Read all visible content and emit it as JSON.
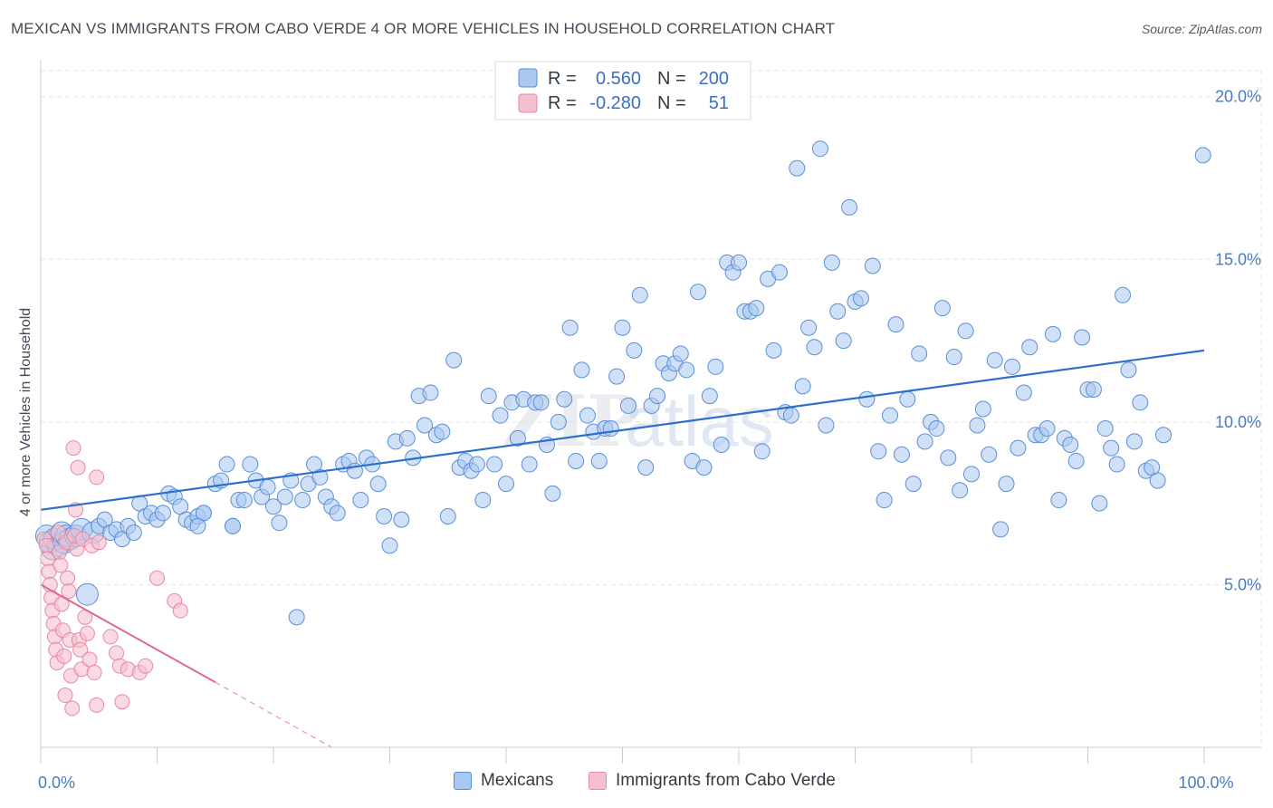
{
  "title": "MEXICAN VS IMMIGRANTS FROM CABO VERDE 4 OR MORE VEHICLES IN HOUSEHOLD CORRELATION CHART",
  "source": "Source: ZipAtlas.com",
  "watermark": {
    "zip": "ZIP",
    "atlas": "atlas"
  },
  "colors": {
    "blue_fill": "#a9c8f0",
    "blue_stroke": "#5b8fd8",
    "blue_line": "#2f6fcc",
    "pink_fill": "#f5bfcf",
    "pink_stroke": "#e68aa8",
    "pink_line": "#e06a93",
    "tick_text": "#4a7cc4",
    "grid": "#e3e6ea"
  },
  "legend": {
    "row1": {
      "r_label": "R =",
      "r_value": "0.560",
      "n_label": "N =",
      "n_value": "200"
    },
    "row2": {
      "r_label": "R =",
      "r_value": "-0.280",
      "n_label": "N =",
      "n_value": "51"
    }
  },
  "bottom_legend": {
    "mexicans": "Mexicans",
    "caboverde": "Immigrants from Cabo Verde"
  },
  "chart_data": {
    "type": "scatter",
    "title": "MEXICAN VS IMMIGRANTS FROM CABO VERDE 4 OR MORE VEHICLES IN HOUSEHOLD CORRELATION CHART",
    "xlabel": "",
    "ylabel": "4 or more Vehicles in Household",
    "xlim": [
      0,
      100
    ],
    "ylim": [
      0,
      20.8
    ],
    "x_tick_labels": [
      {
        "value": 0,
        "label": "0.0%"
      },
      {
        "value": 100,
        "label": "100.0%"
      }
    ],
    "y_tick_labels": [
      {
        "value": 5,
        "label": "5.0%"
      },
      {
        "value": 10,
        "label": "10.0%"
      },
      {
        "value": 15,
        "label": "15.0%"
      },
      {
        "value": 20,
        "label": "20.0%"
      }
    ],
    "grid": true,
    "legend_position": "top-center",
    "series": [
      {
        "name": "Mexicans",
        "r": 0.56,
        "n": 200,
        "trend": {
          "x": [
            0,
            100
          ],
          "y": [
            7.3,
            12.2
          ]
        },
        "points": [
          [
            0.5,
            6.5
          ],
          [
            0.8,
            6.3
          ],
          [
            1.0,
            6.1
          ],
          [
            1.2,
            6.4
          ],
          [
            1.5,
            6.2
          ],
          [
            1.8,
            6.6
          ],
          [
            2.0,
            6.3
          ],
          [
            2.2,
            6.5
          ],
          [
            2.5,
            6.4
          ],
          [
            3.0,
            6.5
          ],
          [
            3.5,
            6.7
          ],
          [
            4.0,
            4.7
          ],
          [
            4.5,
            6.6
          ],
          [
            5.0,
            6.8
          ],
          [
            5.5,
            7.0
          ],
          [
            6.0,
            6.6
          ],
          [
            6.5,
            6.7
          ],
          [
            7.0,
            6.4
          ],
          [
            7.5,
            6.8
          ],
          [
            8.0,
            6.6
          ],
          [
            8.5,
            7.5
          ],
          [
            9.0,
            7.1
          ],
          [
            9.5,
            7.2
          ],
          [
            10.0,
            7.0
          ],
          [
            10.5,
            7.2
          ],
          [
            11.0,
            7.8
          ],
          [
            11.5,
            7.7
          ],
          [
            12.0,
            7.4
          ],
          [
            12.5,
            7.0
          ],
          [
            13.0,
            6.9
          ],
          [
            13.5,
            7.1
          ],
          [
            14.0,
            7.2
          ],
          [
            15.0,
            8.1
          ],
          [
            15.5,
            8.2
          ],
          [
            16.0,
            8.7
          ],
          [
            16.5,
            6.8
          ],
          [
            17.0,
            7.6
          ],
          [
            17.5,
            7.6
          ],
          [
            18.0,
            8.7
          ],
          [
            18.5,
            8.2
          ],
          [
            19.0,
            7.7
          ],
          [
            19.5,
            8.0
          ],
          [
            20.0,
            7.4
          ],
          [
            20.5,
            6.9
          ],
          [
            21.0,
            7.7
          ],
          [
            21.5,
            8.2
          ],
          [
            22.0,
            4.0
          ],
          [
            22.5,
            7.6
          ],
          [
            23.0,
            8.1
          ],
          [
            23.5,
            8.7
          ],
          [
            24.0,
            8.3
          ],
          [
            24.5,
            7.7
          ],
          [
            25.0,
            7.4
          ],
          [
            25.5,
            7.2
          ],
          [
            26.0,
            8.7
          ],
          [
            26.5,
            8.8
          ],
          [
            27.0,
            8.5
          ],
          [
            27.5,
            7.6
          ],
          [
            28.0,
            8.9
          ],
          [
            28.5,
            8.7
          ],
          [
            29.0,
            8.1
          ],
          [
            29.5,
            7.1
          ],
          [
            30.0,
            6.2
          ],
          [
            30.5,
            9.4
          ],
          [
            31.0,
            7.0
          ],
          [
            31.5,
            9.5
          ],
          [
            32.0,
            8.9
          ],
          [
            32.5,
            10.8
          ],
          [
            33.0,
            9.9
          ],
          [
            33.5,
            10.9
          ],
          [
            34.0,
            9.6
          ],
          [
            34.5,
            9.7
          ],
          [
            35.0,
            7.1
          ],
          [
            35.5,
            11.9
          ],
          [
            36.0,
            8.6
          ],
          [
            36.5,
            8.8
          ],
          [
            37.0,
            8.5
          ],
          [
            37.5,
            8.7
          ],
          [
            38.0,
            7.6
          ],
          [
            38.5,
            10.8
          ],
          [
            39.0,
            8.7
          ],
          [
            39.5,
            10.2
          ],
          [
            40.0,
            8.1
          ],
          [
            40.5,
            10.6
          ],
          [
            41.0,
            9.5
          ],
          [
            41.5,
            10.7
          ],
          [
            42.0,
            8.7
          ],
          [
            42.5,
            10.6
          ],
          [
            43.0,
            10.6
          ],
          [
            43.5,
            9.3
          ],
          [
            44.0,
            7.8
          ],
          [
            44.5,
            10.0
          ],
          [
            45.0,
            10.7
          ],
          [
            45.5,
            12.9
          ],
          [
            46.0,
            8.8
          ],
          [
            46.5,
            11.6
          ],
          [
            47.0,
            10.2
          ],
          [
            47.5,
            9.7
          ],
          [
            48.0,
            8.8
          ],
          [
            48.5,
            9.8
          ],
          [
            49.0,
            9.8
          ],
          [
            49.5,
            11.4
          ],
          [
            50.0,
            12.9
          ],
          [
            50.5,
            10.5
          ],
          [
            51.0,
            12.2
          ],
          [
            51.5,
            13.9
          ],
          [
            52.0,
            8.6
          ],
          [
            52.5,
            10.5
          ],
          [
            53.0,
            10.8
          ],
          [
            53.5,
            11.8
          ],
          [
            54.0,
            11.5
          ],
          [
            54.5,
            11.8
          ],
          [
            55.0,
            12.1
          ],
          [
            55.5,
            11.6
          ],
          [
            56.0,
            8.8
          ],
          [
            56.5,
            14.0
          ],
          [
            57.0,
            8.6
          ],
          [
            57.5,
            10.8
          ],
          [
            58.0,
            11.7
          ],
          [
            58.5,
            9.3
          ],
          [
            59.0,
            14.9
          ],
          [
            59.5,
            14.6
          ],
          [
            60.0,
            14.9
          ],
          [
            60.5,
            13.4
          ],
          [
            61.0,
            13.4
          ],
          [
            61.5,
            13.5
          ],
          [
            62.0,
            9.1
          ],
          [
            62.5,
            14.4
          ],
          [
            63.0,
            12.2
          ],
          [
            63.5,
            14.6
          ],
          [
            64.0,
            10.3
          ],
          [
            64.5,
            10.2
          ],
          [
            65.0,
            17.8
          ],
          [
            65.5,
            11.1
          ],
          [
            66.0,
            12.9
          ],
          [
            66.5,
            12.3
          ],
          [
            67.0,
            18.4
          ],
          [
            67.5,
            9.9
          ],
          [
            68.0,
            14.9
          ],
          [
            68.5,
            13.4
          ],
          [
            69.0,
            12.5
          ],
          [
            69.5,
            16.6
          ],
          [
            70.0,
            13.7
          ],
          [
            70.5,
            13.8
          ],
          [
            71.0,
            10.7
          ],
          [
            71.5,
            14.8
          ],
          [
            72.0,
            9.1
          ],
          [
            72.5,
            7.6
          ],
          [
            73.0,
            10.2
          ],
          [
            73.5,
            13.0
          ],
          [
            74.0,
            9.0
          ],
          [
            74.5,
            10.7
          ],
          [
            75.0,
            8.1
          ],
          [
            75.5,
            12.1
          ],
          [
            76.0,
            9.4
          ],
          [
            76.5,
            10.0
          ],
          [
            77.0,
            9.8
          ],
          [
            77.5,
            13.5
          ],
          [
            78.0,
            8.9
          ],
          [
            78.5,
            12.0
          ],
          [
            79.0,
            7.9
          ],
          [
            79.5,
            12.8
          ],
          [
            80.0,
            8.4
          ],
          [
            80.5,
            9.9
          ],
          [
            81.0,
            10.4
          ],
          [
            81.5,
            9.0
          ],
          [
            82.0,
            11.9
          ],
          [
            82.5,
            6.7
          ],
          [
            83.0,
            8.1
          ],
          [
            83.5,
            11.7
          ],
          [
            84.0,
            9.2
          ],
          [
            84.5,
            10.9
          ],
          [
            85.0,
            12.3
          ],
          [
            85.5,
            9.6
          ],
          [
            86.0,
            9.6
          ],
          [
            86.5,
            9.8
          ],
          [
            87.0,
            12.7
          ],
          [
            87.5,
            7.6
          ],
          [
            88.0,
            9.5
          ],
          [
            88.5,
            9.3
          ],
          [
            89.0,
            8.8
          ],
          [
            89.5,
            12.6
          ],
          [
            90.0,
            11.0
          ],
          [
            90.5,
            11.0
          ],
          [
            91.0,
            7.5
          ],
          [
            91.5,
            9.8
          ],
          [
            92.0,
            9.2
          ],
          [
            92.5,
            8.7
          ],
          [
            93.0,
            13.9
          ],
          [
            93.5,
            11.6
          ],
          [
            94.0,
            9.4
          ],
          [
            94.5,
            10.6
          ],
          [
            95.0,
            8.5
          ],
          [
            95.5,
            8.6
          ],
          [
            96.0,
            8.2
          ],
          [
            96.5,
            9.6
          ],
          [
            99.9,
            18.2
          ],
          [
            14.0,
            7.2
          ],
          [
            13.5,
            6.8
          ],
          [
            16.5,
            6.8
          ]
        ]
      },
      {
        "name": "Immigrants from Cabo Verde",
        "r": -0.28,
        "n": 51,
        "trend": {
          "x": [
            0,
            15
          ],
          "y": [
            5.0,
            2.0
          ]
        },
        "trend_dashed": {
          "x": [
            15,
            25
          ],
          "y": [
            2.0,
            0.0
          ]
        },
        "points": [
          [
            0.3,
            6.4
          ],
          [
            0.5,
            6.2
          ],
          [
            0.6,
            5.8
          ],
          [
            0.7,
            5.4
          ],
          [
            0.8,
            5.0
          ],
          [
            0.9,
            4.6
          ],
          [
            1.0,
            4.2
          ],
          [
            1.1,
            3.8
          ],
          [
            1.2,
            3.4
          ],
          [
            1.3,
            3.0
          ],
          [
            1.4,
            2.6
          ],
          [
            1.5,
            6.6
          ],
          [
            1.6,
            6.0
          ],
          [
            1.7,
            5.6
          ],
          [
            1.8,
            4.4
          ],
          [
            1.9,
            3.6
          ],
          [
            2.0,
            2.8
          ],
          [
            2.1,
            1.6
          ],
          [
            2.2,
            6.3
          ],
          [
            2.3,
            5.2
          ],
          [
            2.4,
            4.8
          ],
          [
            2.5,
            3.3
          ],
          [
            2.6,
            2.2
          ],
          [
            2.7,
            1.2
          ],
          [
            2.8,
            9.2
          ],
          [
            2.9,
            6.5
          ],
          [
            3.0,
            7.3
          ],
          [
            3.1,
            6.1
          ],
          [
            3.2,
            8.6
          ],
          [
            3.3,
            3.3
          ],
          [
            3.4,
            3.0
          ],
          [
            3.5,
            2.4
          ],
          [
            3.6,
            6.4
          ],
          [
            3.8,
            4.0
          ],
          [
            4.0,
            3.5
          ],
          [
            4.2,
            2.7
          ],
          [
            4.4,
            6.2
          ],
          [
            4.6,
            2.3
          ],
          [
            4.8,
            1.3
          ],
          [
            5.0,
            6.3
          ],
          [
            6.0,
            3.4
          ],
          [
            6.5,
            2.9
          ],
          [
            6.8,
            2.5
          ],
          [
            7.0,
            1.4
          ],
          [
            7.5,
            2.4
          ],
          [
            8.5,
            2.3
          ],
          [
            9.0,
            2.5
          ],
          [
            10.0,
            5.2
          ],
          [
            11.5,
            4.5
          ],
          [
            12.0,
            4.2
          ],
          [
            4.8,
            8.3
          ]
        ]
      }
    ]
  }
}
